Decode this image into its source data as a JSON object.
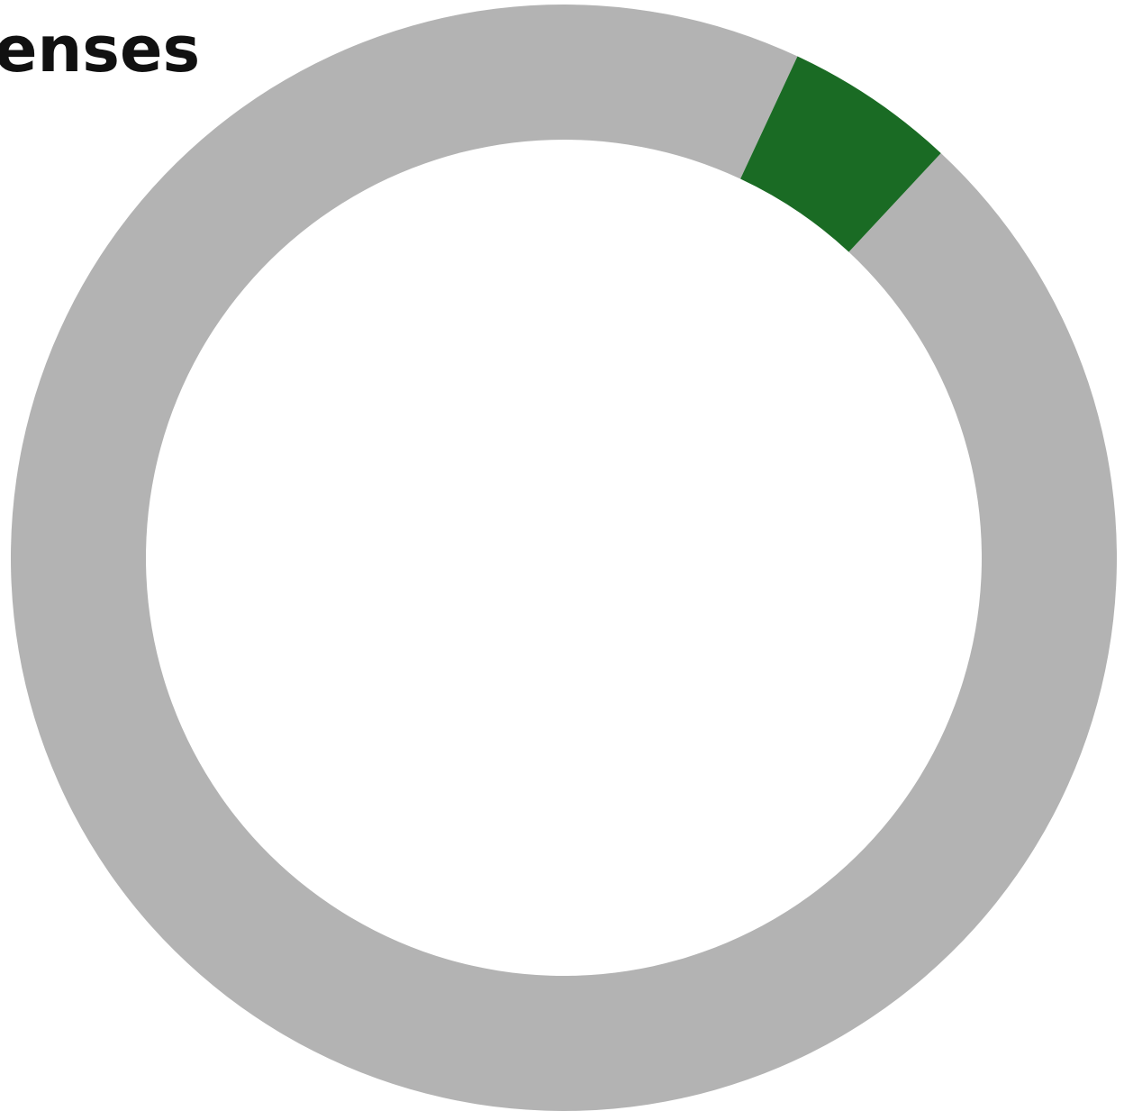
{
  "chart_data": {
    "type": "pie",
    "style": "donut",
    "title": "enses",
    "slices": [
      {
        "value": 95,
        "color": "#b3b3b3"
      },
      {
        "value": 5,
        "color": "#1a6b24"
      }
    ],
    "highlight_start_deg": 25
  }
}
